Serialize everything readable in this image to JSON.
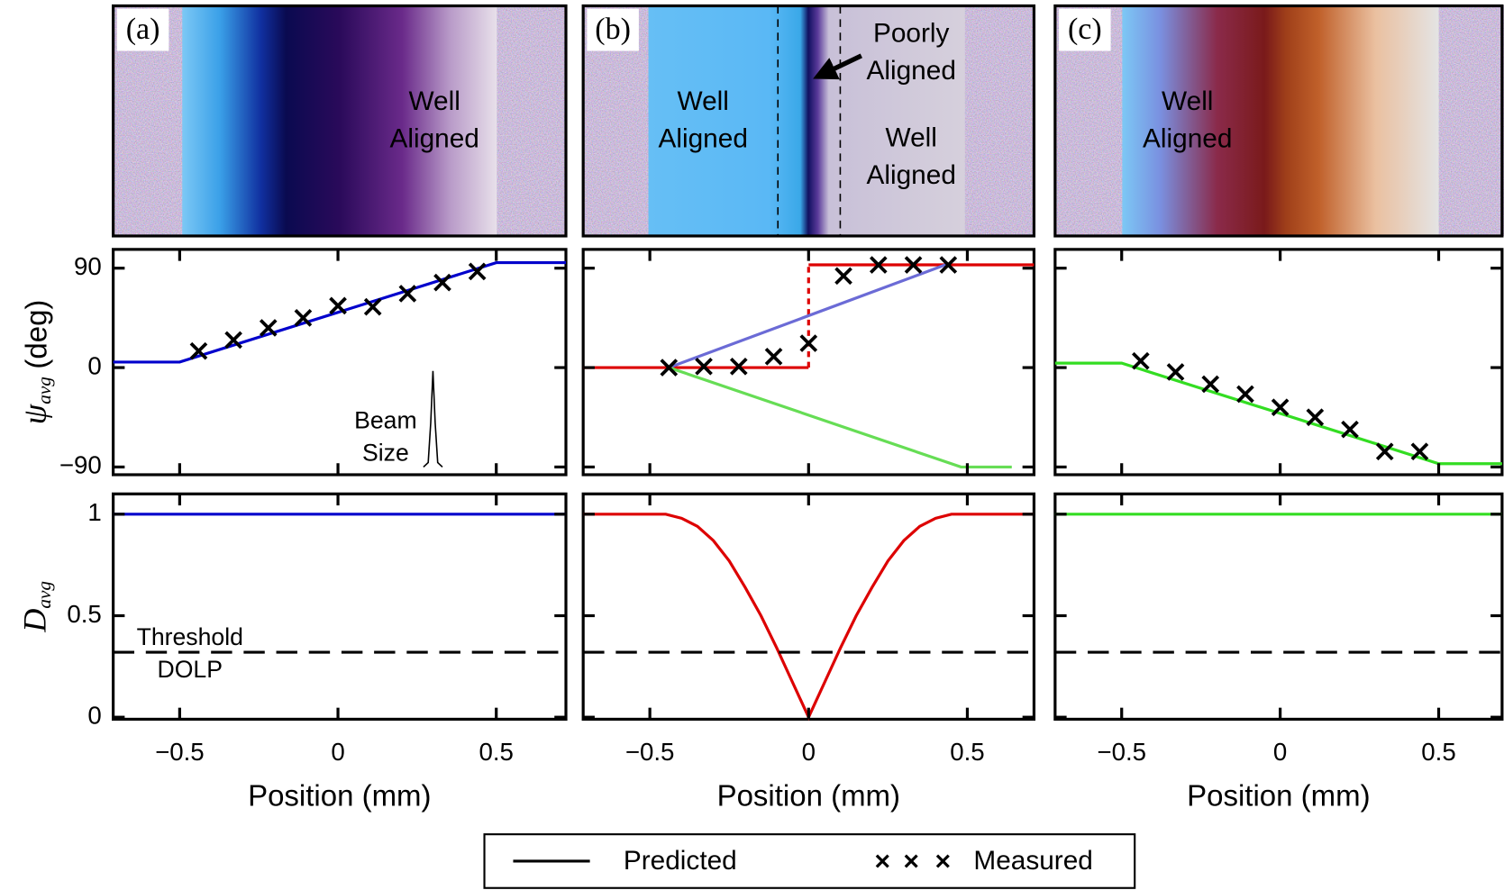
{
  "images": [
    {
      "label": "(a)",
      "texts": [
        [
          "Well",
          "Aligned"
        ]
      ]
    },
    {
      "label": "(b)",
      "texts": [
        [
          "Poorly",
          "Aligned"
        ],
        [
          "Well",
          "Aligned"
        ],
        [
          "Well",
          "Aligned"
        ]
      ]
    },
    {
      "label": "(c)",
      "texts": [
        [
          "Well",
          "Aligned"
        ]
      ]
    }
  ],
  "chart_data": [
    {
      "type": "line",
      "ylabel": {
        "symbol": "ψ",
        "subscript": "avg",
        "unit": "(deg)"
      },
      "xlim": [
        -0.71,
        0.72
      ],
      "xticks": [
        -0.5,
        0,
        0.5
      ],
      "ylim": [
        -97,
        107
      ],
      "yticks": [
        90,
        0,
        {
          "value": -90,
          "label": "−90"
        }
      ],
      "series": [
        {
          "name": "Predicted",
          "color": "#0000cc",
          "x": [
            -0.71,
            -0.5,
            0.5,
            0.72
          ],
          "values": [
            5,
            5,
            95,
            95
          ]
        },
        {
          "name": "Measured",
          "color": "#000000",
          "marker": "x",
          "x": [
            -0.44,
            -0.33,
            -0.22,
            -0.11,
            0,
            0.11,
            0.22,
            0.33,
            0.44
          ],
          "values": [
            15,
            25,
            36,
            45,
            56,
            55,
            67,
            77,
            87
          ]
        },
        {
          "color": "#000000",
          "x": [
            0.27,
            0.285,
            0.293,
            0.3,
            0.307,
            0.315,
            0.33
          ],
          "values": [
            -90,
            -86,
            -50,
            -3,
            -50,
            -86,
            -90
          ]
        }
      ],
      "annotations": [
        "Beam",
        "Size"
      ]
    },
    {
      "type": "line",
      "ylabel": {
        "symbol": "D",
        "subscript": "avg"
      },
      "xlabel": "Position (mm)",
      "xlim": [
        -0.71,
        0.72
      ],
      "xticks": [
        {
          "value": -0.5,
          "label": "−0.5"
        },
        0,
        0.5
      ],
      "ylim": [
        -0.01,
        1.1
      ],
      "yticks": [
        0,
        0.5,
        1
      ],
      "series": [
        {
          "color": "#0000cc",
          "x": [
            -0.71,
            0.72
          ],
          "values": [
            1,
            1
          ]
        },
        {
          "color": "#000000",
          "dashed": true,
          "x": [
            -0.71,
            0.72
          ],
          "values": [
            0.32,
            0.32
          ]
        }
      ],
      "annotations": [
        "Threshold",
        "DOLP"
      ]
    },
    {
      "type": "line",
      "xlim": [
        -0.71,
        0.71
      ],
      "xticks": [
        -0.5,
        0,
        0.5
      ],
      "ylim": [
        -97,
        107
      ],
      "yticks": [
        90,
        0,
        -90
      ],
      "series": [
        {
          "color": "#dd0000",
          "x": [
            -0.71,
            0
          ],
          "values": [
            0,
            0
          ]
        },
        {
          "color": "#dd0000",
          "dashed": true,
          "x": [
            0,
            0
          ],
          "values": [
            0,
            93
          ]
        },
        {
          "color": "#dd0000",
          "x": [
            0,
            0.71
          ],
          "values": [
            93,
            93
          ]
        },
        {
          "color": "#6b6bd6",
          "x": [
            -0.44,
            0.44
          ],
          "values": [
            0,
            94
          ]
        },
        {
          "color": "#66dd55",
          "x": [
            -0.44,
            0.48,
            0.64
          ],
          "values": [
            0,
            -90,
            -90
          ]
        },
        {
          "color": "#000000",
          "marker": "x",
          "x": [
            -0.44,
            -0.33,
            -0.22,
            -0.11,
            0,
            0.11,
            0.22,
            0.33,
            0.44
          ],
          "values": [
            0,
            1,
            1,
            10,
            22,
            83,
            93,
            93,
            93
          ]
        }
      ]
    },
    {
      "type": "line",
      "xlabel": "Position (mm)",
      "xlim": [
        -0.71,
        0.71
      ],
      "xticks": [
        {
          "value": -0.5,
          "label": "−0.5"
        },
        0,
        0.5
      ],
      "ylim": [
        -0.01,
        1.1
      ],
      "yticks": [
        0,
        0.5,
        1
      ],
      "series": [
        {
          "color": "#dd0000",
          "x": [
            -0.71,
            -0.45,
            -0.4,
            -0.35,
            -0.3,
            -0.25,
            -0.2,
            -0.15,
            -0.1,
            -0.05,
            0,
            0.05,
            0.1,
            0.15,
            0.2,
            0.25,
            0.3,
            0.35,
            0.4,
            0.45,
            0.71
          ],
          "values": [
            1,
            1,
            0.98,
            0.94,
            0.87,
            0.77,
            0.64,
            0.5,
            0.34,
            0.17,
            0,
            0.17,
            0.34,
            0.5,
            0.64,
            0.77,
            0.87,
            0.94,
            0.98,
            1,
            1
          ]
        },
        {
          "color": "#000000",
          "dashed": true,
          "x": [
            -0.71,
            0.71
          ],
          "values": [
            0.32,
            0.32
          ]
        }
      ]
    },
    {
      "type": "line",
      "xlim": [
        -0.71,
        0.7
      ],
      "xticks": [
        -0.5,
        0,
        0.5
      ],
      "ylim": [
        -97,
        107
      ],
      "yticks": [
        90,
        0,
        -90
      ],
      "series": [
        {
          "color": "#33dd22",
          "x": [
            -0.71,
            -0.5,
            0.5,
            0.7
          ],
          "values": [
            4,
            4,
            -87,
            -87
          ]
        },
        {
          "color": "#000000",
          "marker": "x",
          "x": [
            -0.44,
            -0.33,
            -0.22,
            -0.11,
            0,
            0.11,
            0.22,
            0.33,
            0.44
          ],
          "values": [
            6,
            -4,
            -15,
            -24,
            -36,
            -45,
            -56,
            -76,
            -76
          ]
        }
      ]
    },
    {
      "type": "line",
      "xlabel": "Position (mm)",
      "xlim": [
        -0.71,
        0.7
      ],
      "xticks": [
        {
          "value": -0.5,
          "label": "−0.5"
        },
        0,
        0.5
      ],
      "ylim": [
        -0.01,
        1.1
      ],
      "yticks": [
        0,
        0.5,
        1
      ],
      "series": [
        {
          "color": "#33dd22",
          "x": [
            -0.71,
            0.7
          ],
          "values": [
            1,
            1
          ]
        },
        {
          "color": "#000000",
          "dashed": true,
          "x": [
            -0.71,
            0.7
          ],
          "values": [
            0.32,
            0.32
          ]
        }
      ]
    }
  ]
}
